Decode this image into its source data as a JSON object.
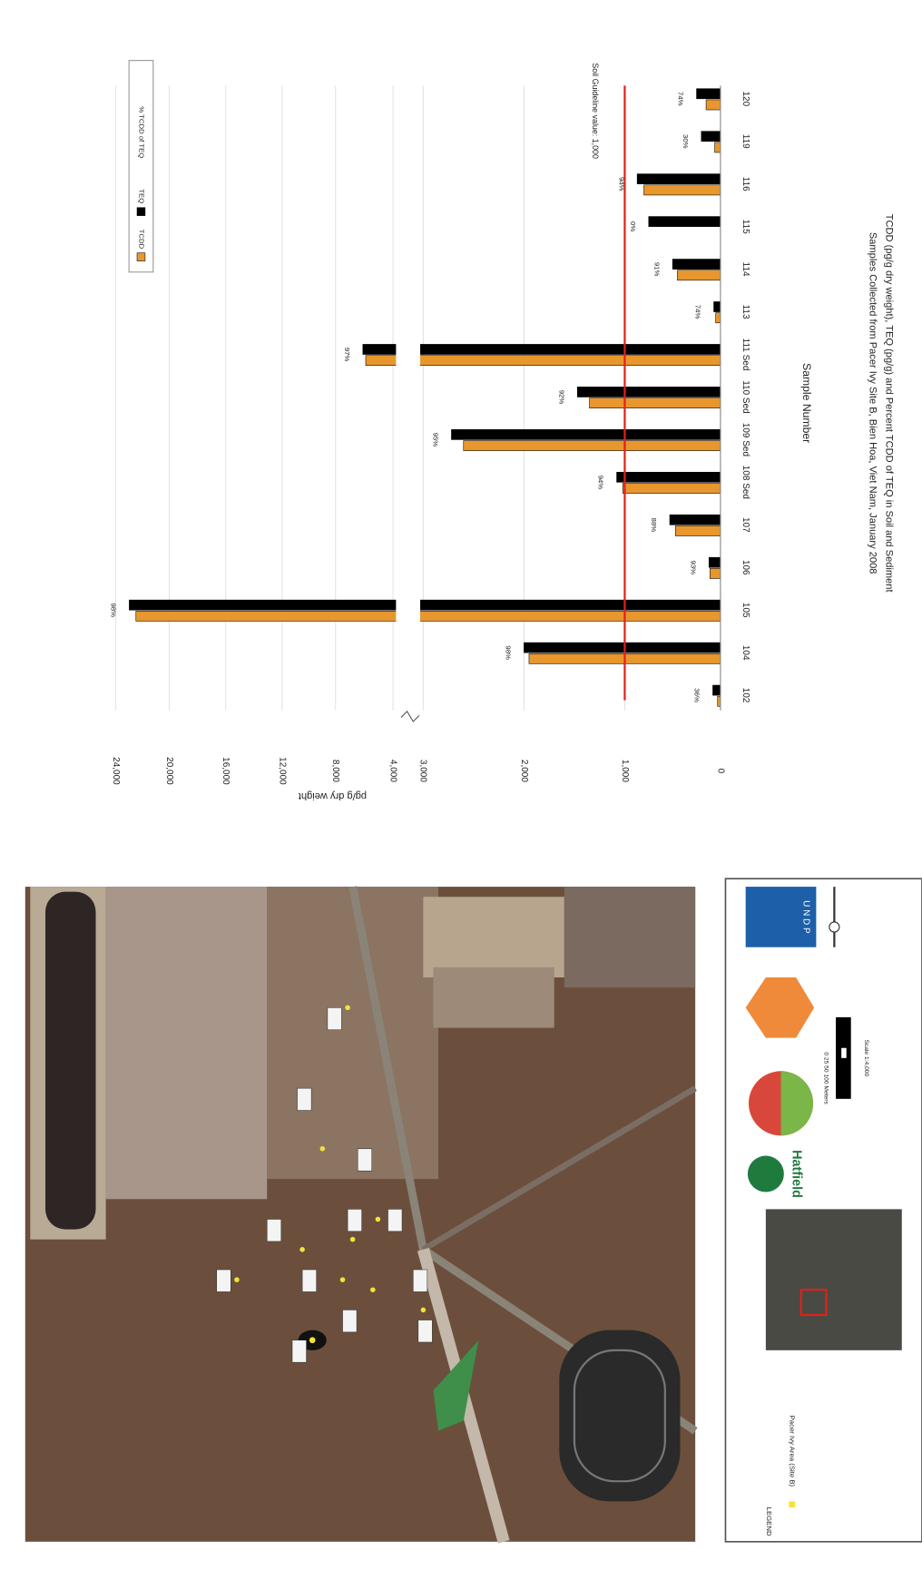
{
  "chart_data": {
    "type": "bar",
    "title": "TCDD (pg/g dry weight), TEQ (pg/g) and Percent TCDD of TEQ in Soil and Sediment",
    "subtitle": "Samples Collected from Pacer Ivy Site B, Bien Hoa, Viet Nam, January 2008",
    "x_label": "Sample Number",
    "y_label": "pg/g dry weight",
    "categories": [
      "102",
      "104",
      "105",
      "106",
      "107",
      "108 Sed",
      "109 Sed",
      "110 Sed",
      "111 Sed",
      "113",
      "114",
      "115",
      "116",
      "119",
      "120"
    ],
    "series": [
      {
        "name": "TCDD",
        "color": "#e8962e",
        "values": [
          30,
          1950,
          22500,
          110,
          470,
          1020,
          2600,
          1350,
          5900,
          50,
          450,
          0,
          800,
          60,
          150
        ]
      },
      {
        "name": "TEQ",
        "color": "#000000",
        "values": [
          80,
          2000,
          23000,
          120,
          530,
          1080,
          2720,
          1470,
          6100,
          70,
          500,
          750,
          870,
          200,
          250
        ]
      },
      {
        "name": "% TCDD of TEQ",
        "values": [
          36,
          98,
          98,
          93,
          88,
          94,
          95,
          92,
          97,
          74,
          91,
          0,
          94,
          30,
          74
        ],
        "value_labels": [
          "36%",
          "98%",
          "98%",
          "93%",
          "88%",
          "94%",
          "95%",
          "92%",
          "97%",
          "74%",
          "91%",
          "0%",
          "94%",
          "30%",
          "74%"
        ]
      }
    ],
    "ylim": [
      0,
      24000
    ],
    "yticks": [
      0,
      {
        "value": 1000,
        "label": "1,000"
      },
      {
        "value": 2000,
        "label": "2,000"
      },
      {
        "value": 3000,
        "label": "3,000"
      },
      {
        "value": 4000,
        "label": "4,000"
      },
      {
        "value": 8000,
        "label": "8,000"
      },
      {
        "value": 12000,
        "label": "12,000"
      },
      {
        "value": 16000,
        "label": "16,000"
      },
      {
        "value": 20000,
        "label": "20,000"
      },
      {
        "value": 24000,
        "label": "24,000"
      }
    ],
    "grid": true,
    "guideline": {
      "value": 1000,
      "label": "Soil Guideline value: 1,000",
      "color": "#e0211b"
    }
  },
  "map": {
    "legend_title": "LEGEND",
    "legend_item": "Pacer Ivy Area (Site B)",
    "logo": "Hatfield",
    "undp": "U N D P",
    "scale_bar": "0 25 50 100 Meters",
    "scale": "Scale 1:4,000"
  }
}
